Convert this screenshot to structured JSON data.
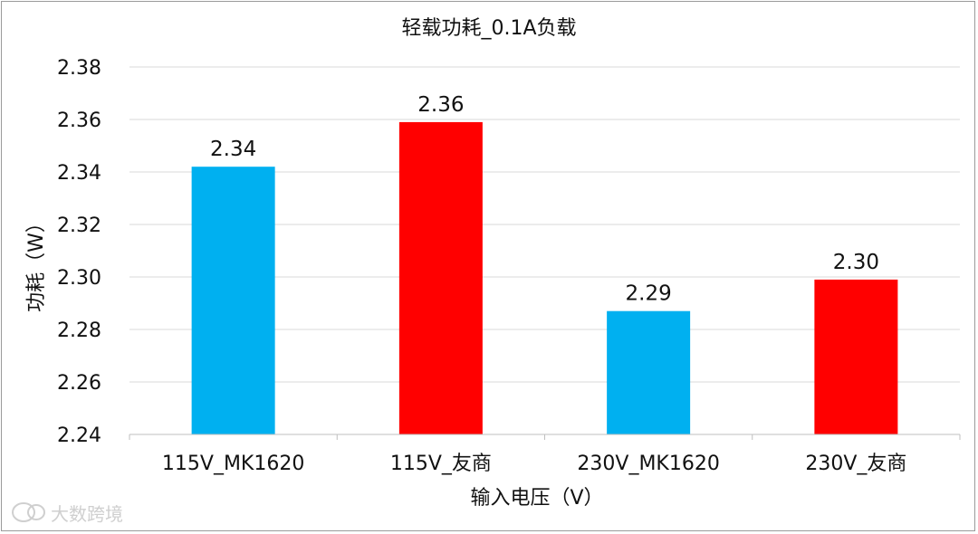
{
  "chart_data": {
    "type": "bar",
    "title": "轻载功耗_0.1A负载",
    "xlabel": "输入电压（V）",
    "ylabel": "功耗（W）",
    "categories": [
      "115V_MK1620",
      "115V_友商",
      "230V_MK1620",
      "230V_友商"
    ],
    "values": [
      2.342,
      2.359,
      2.287,
      2.299
    ],
    "value_labels": [
      "2.34",
      "2.36",
      "2.29",
      "2.30"
    ],
    "bar_colors": [
      "#00b0f0",
      "#ff0000",
      "#00b0f0",
      "#ff0000"
    ],
    "ylim": [
      2.24,
      2.38
    ],
    "yticks": [
      2.24,
      2.26,
      2.28,
      2.3,
      2.32,
      2.34,
      2.36,
      2.38
    ],
    "ytick_labels": [
      "2.24",
      "2.26",
      "2.28",
      "2.30",
      "2.32",
      "2.34",
      "2.36",
      "2.38"
    ],
    "grid": true,
    "legend": "none"
  },
  "watermark": {
    "text": "大数跨境",
    "icon": "chat-bubble-icon"
  }
}
